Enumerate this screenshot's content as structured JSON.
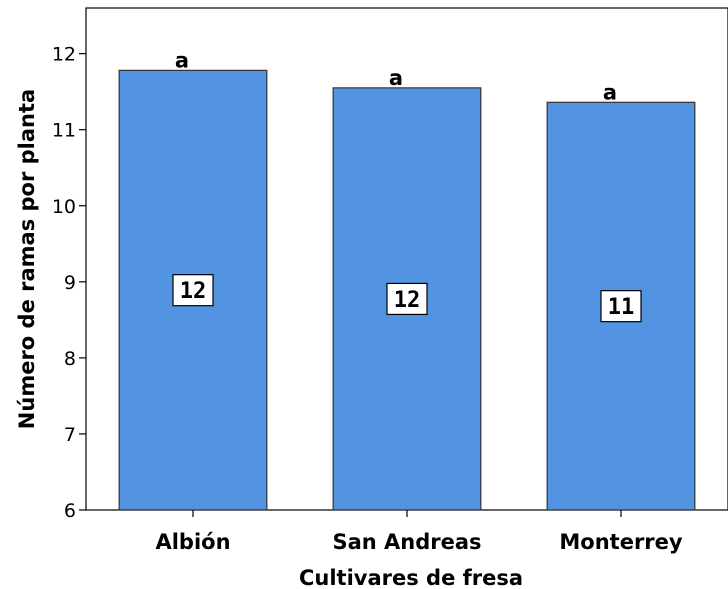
{
  "chart_data": {
    "type": "bar",
    "categories": [
      "Albión",
      "San Andreas",
      "Monterrey"
    ],
    "values": [
      11.78,
      11.55,
      11.36
    ],
    "data_labels": [
      "12",
      "12",
      "11"
    ],
    "significance_letters": [
      "a",
      "a",
      "a"
    ],
    "xlabel": "Cultivares de fresa",
    "ylabel": "Número de ramas por planta",
    "ylim": [
      6,
      12.6
    ],
    "yticks": [
      6,
      7,
      8,
      9,
      10,
      11,
      12
    ],
    "grid": false,
    "bar_color": "#5294E2",
    "bar_edge_color": "#333333"
  }
}
